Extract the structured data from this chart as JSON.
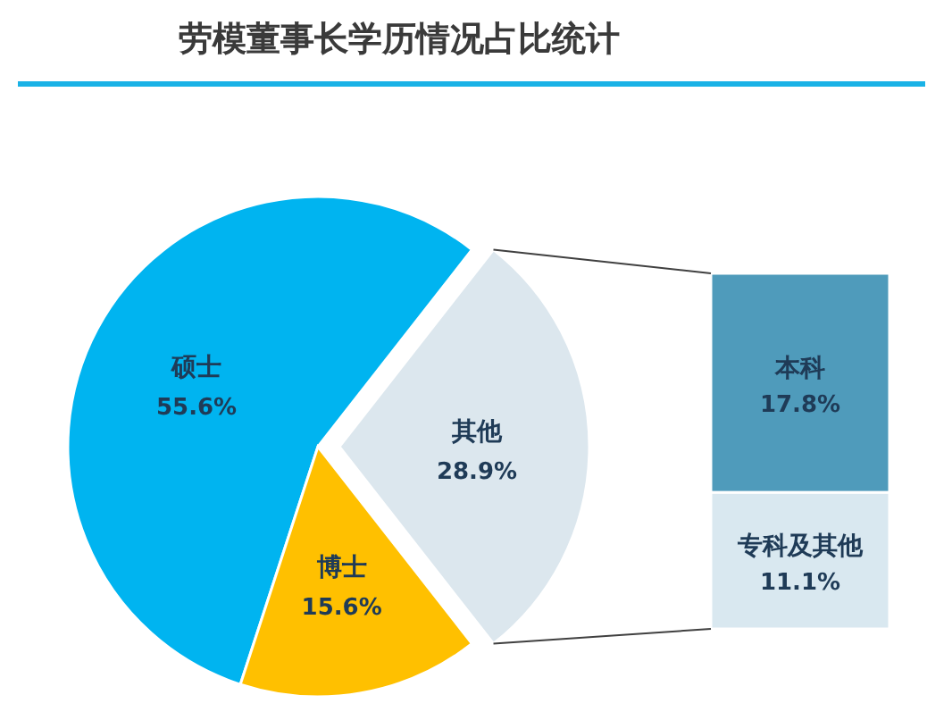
{
  "chart_data": [
    {
      "type": "pie",
      "title": "劳模董事长学历情况占比统计",
      "categories": [
        "硕士",
        "博士",
        "其他"
      ],
      "values": [
        55.6,
        15.6,
        28.9
      ],
      "colors": [
        "#00b4f0",
        "#ffc000",
        "#dce7ee"
      ],
      "value_labels": [
        "55.6%",
        "15.6%",
        "28.9%"
      ]
    },
    {
      "type": "bar",
      "stacked": true,
      "categories": [
        null
      ],
      "series": [
        {
          "name": "专科及其他",
          "color": "#d9e8f0",
          "values": [
            11.1
          ],
          "value_labels": [
            "11.1%"
          ]
        },
        {
          "name": "本科",
          "color": "#4f9bbb",
          "values": [
            17.8
          ],
          "value_labels": [
            "17.8%"
          ]
        }
      ]
    }
  ]
}
